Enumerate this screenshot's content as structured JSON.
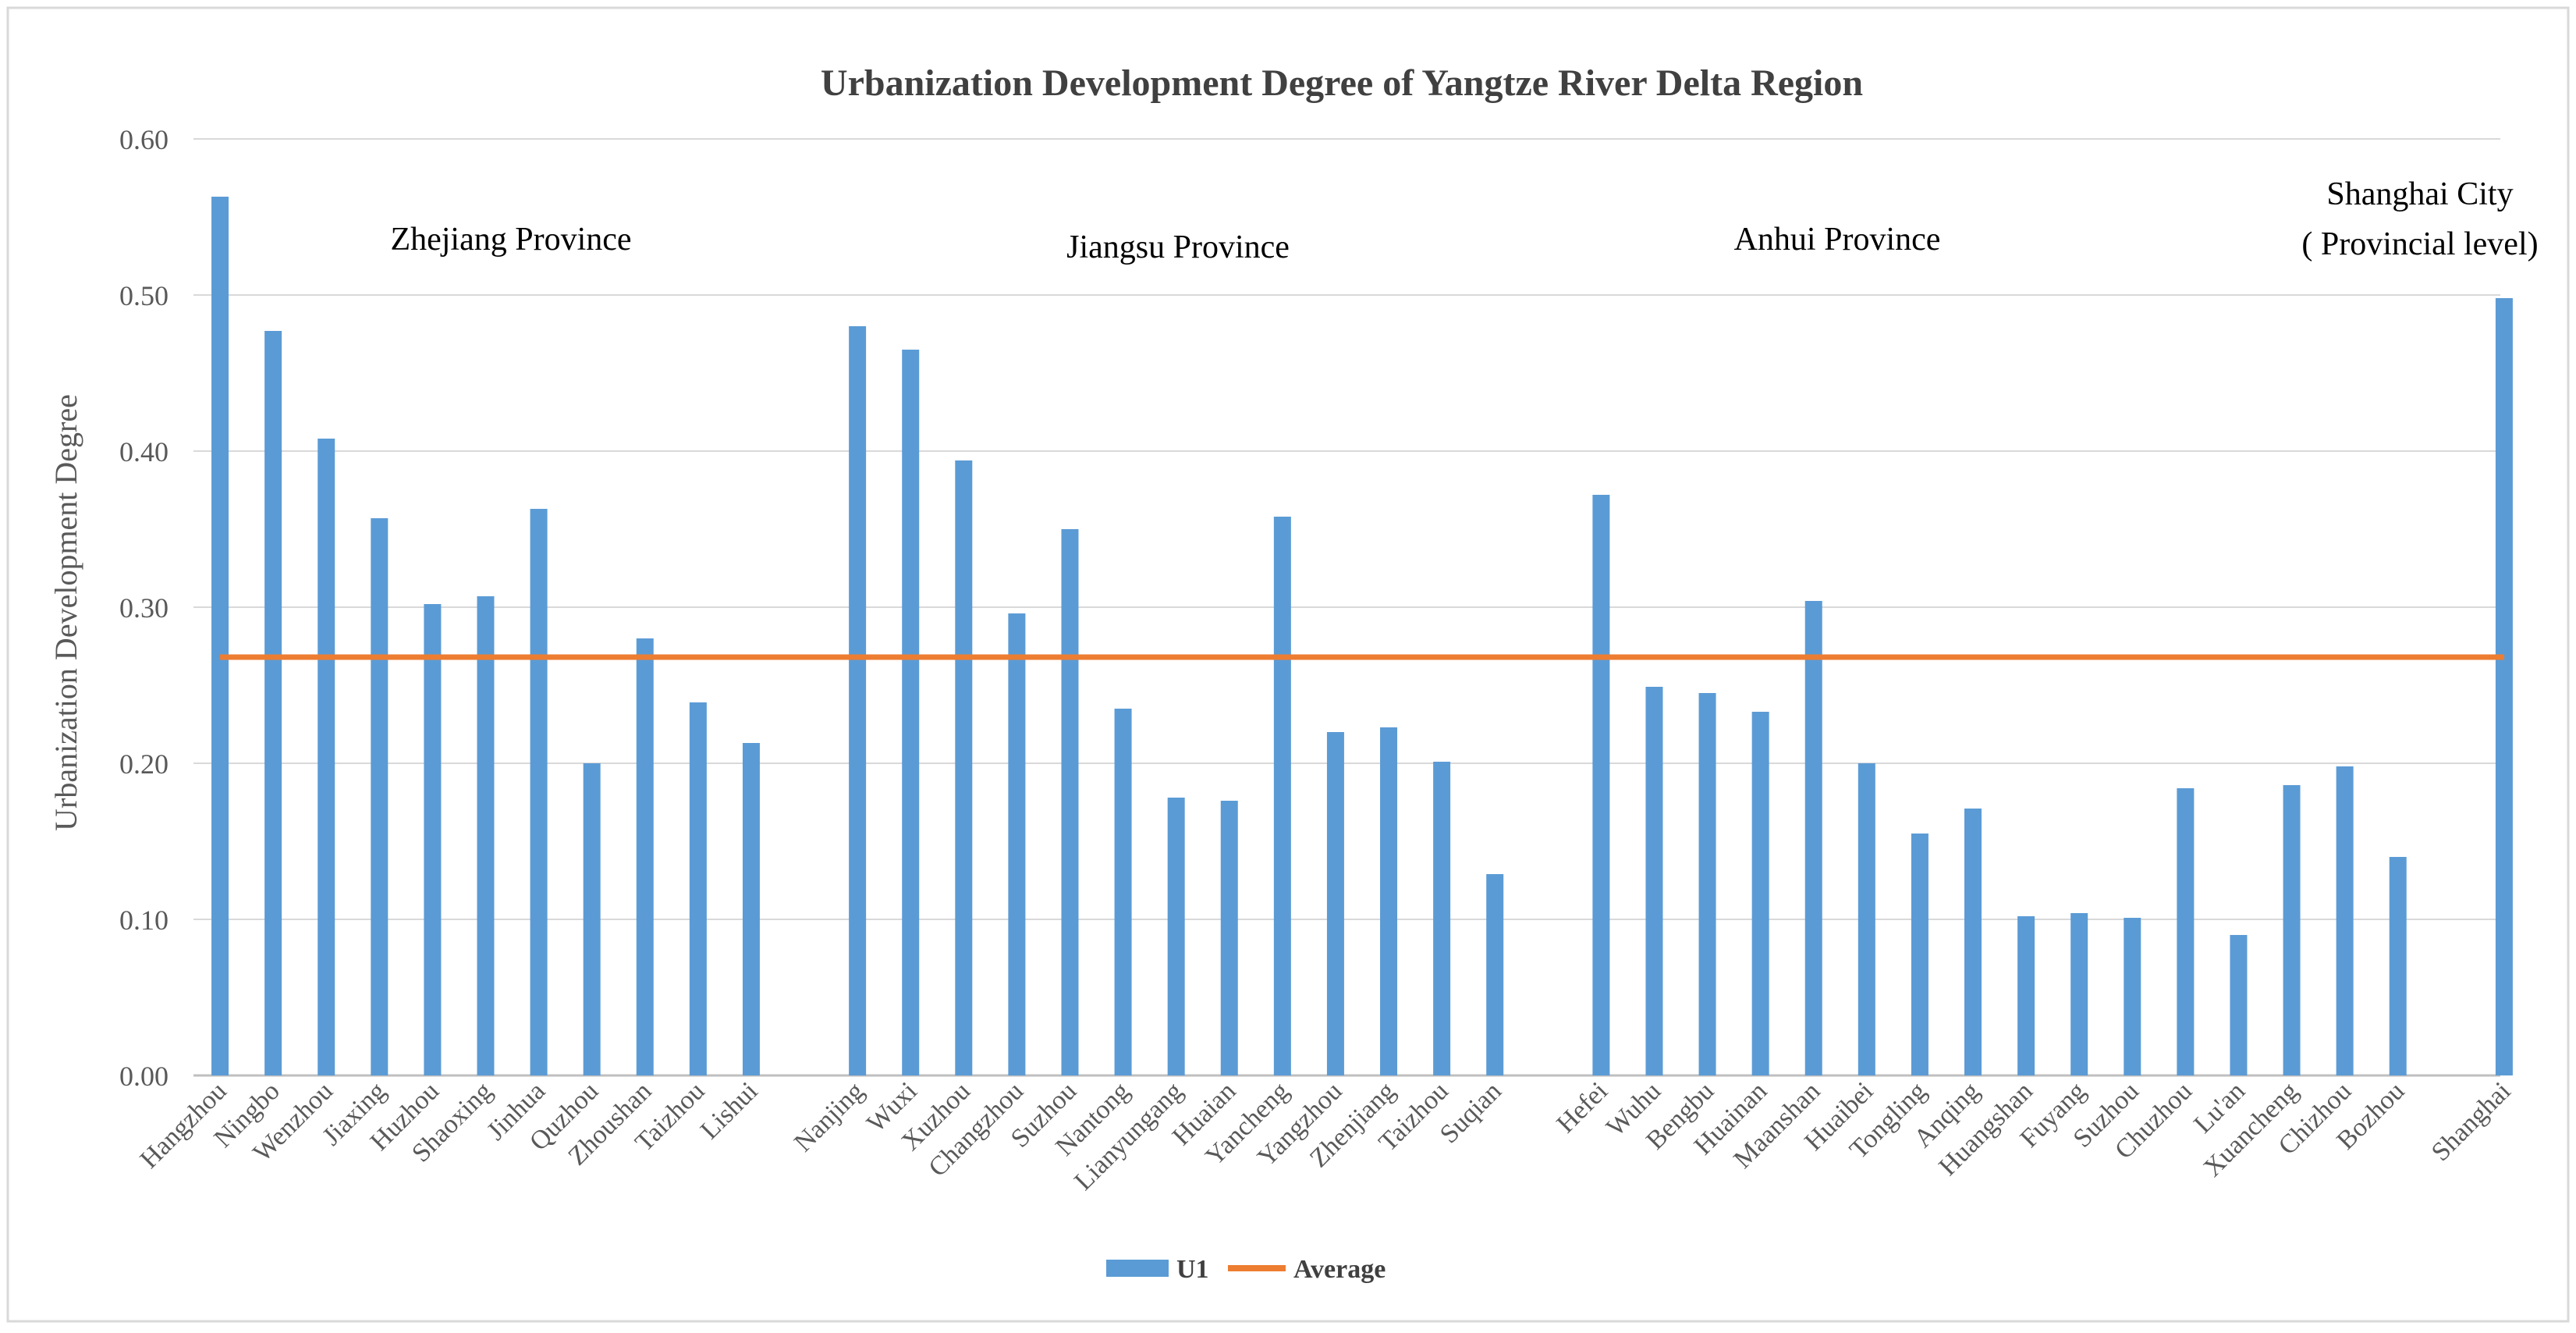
{
  "chart_data": {
    "type": "bar",
    "title": "Urbanization Development Degree of Yangtze River Delta Region",
    "xlabel": "",
    "ylabel": "Urbanization Development Degree",
    "ylim": [
      0,
      0.6
    ],
    "yticks": [
      0,
      0.1,
      0.2,
      0.3,
      0.4,
      0.5,
      0.6
    ],
    "ytick_labels": [
      "0.00",
      "0.10",
      "0.20",
      "0.30",
      "0.40",
      "0.50",
      "0.60"
    ],
    "grid": true,
    "legend_position": "bottom",
    "colors": {
      "bar": "#5B9BD5",
      "average": "#ED7D31",
      "grid": "#D9D9D9",
      "axis": "#BFBFBF",
      "text": "#404040",
      "title": "#404040"
    },
    "groups": [
      {
        "name": "Zhejiang Province",
        "label_lines": [
          "Zhejiang Province"
        ],
        "categories": [
          "Hangzhou",
          "Ningbo",
          "Wenzhou",
          "Jiaxing",
          "Huzhou",
          "Shaoxing",
          "Jinhua",
          "Quzhou",
          "Zhoushan",
          "Taizhou",
          "Lishui"
        ],
        "values": [
          0.563,
          0.477,
          0.408,
          0.357,
          0.302,
          0.307,
          0.363,
          0.2,
          0.28,
          0.239,
          0.213
        ]
      },
      {
        "name": "Jiangsu Province",
        "label_lines": [
          "Jiangsu Province"
        ],
        "categories": [
          "Nanjing",
          "Wuxi",
          "Xuzhou",
          "Changzhou",
          "Suzhou",
          "Nantong",
          "Lianyungang",
          "Huaian",
          "Yancheng",
          "Yangzhou",
          "Zhenjiang",
          "Taizhou",
          "Suqian"
        ],
        "values": [
          0.48,
          0.465,
          0.394,
          0.296,
          0.35,
          0.235,
          0.178,
          0.176,
          0.358,
          0.22,
          0.223,
          0.201,
          0.129
        ]
      },
      {
        "name": "Anhui Province",
        "label_lines": [
          "Anhui Province"
        ],
        "categories": [
          "Hefei",
          "Wuhu",
          "Bengbu",
          "Huainan",
          "Maanshan",
          "Huaibei",
          "Tongling",
          "Anqing",
          "Huangshan",
          "Fuyang",
          "Suzhou",
          "Chuzhou",
          "Lu'an",
          "Xuancheng",
          "Chizhou",
          "Bozhou"
        ],
        "values": [
          0.372,
          0.249,
          0.245,
          0.233,
          0.304,
          0.2,
          0.155,
          0.171,
          0.102,
          0.104,
          0.101,
          0.184,
          0.09,
          0.186,
          0.198,
          0.14
        ]
      },
      {
        "name": "Shanghai City ( Provincial level)",
        "label_lines": [
          "Shanghai City",
          "( Provincial level)"
        ],
        "categories": [
          "Shanghai"
        ],
        "values": [
          0.498
        ]
      }
    ],
    "series": [
      {
        "name": "U1",
        "type": "bar"
      },
      {
        "name": "Average",
        "type": "line",
        "value": 0.268
      }
    ]
  }
}
